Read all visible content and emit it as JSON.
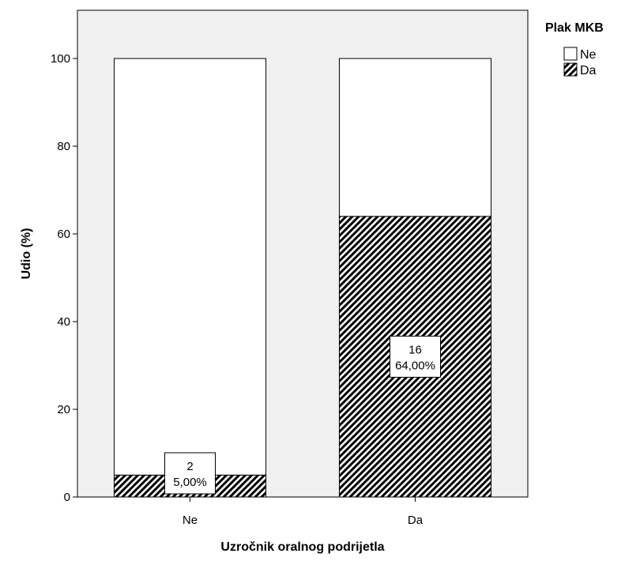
{
  "chart_data": {
    "type": "bar",
    "stacked": true,
    "percent_scale": true,
    "categories": [
      "Ne",
      "Da"
    ],
    "series": [
      {
        "name": "Da",
        "values": [
          5.0,
          64.0
        ],
        "pattern": "hatched",
        "counts": [
          "2",
          "16"
        ],
        "percent_labels": [
          "5,00%",
          "64,00%"
        ]
      },
      {
        "name": "Ne",
        "values": [
          95.0,
          36.0
        ],
        "pattern": "white"
      }
    ],
    "xlabel": "Uzročnik oralnog podrijetla",
    "ylabel": "Udio (%)",
    "ylim": [
      0,
      111
    ],
    "yticks": [
      0,
      20,
      40,
      60,
      80,
      100
    ],
    "ytick_labels": [
      "0",
      "20",
      "40",
      "60",
      "80",
      "100"
    ],
    "legend": {
      "title": "Plak MKB",
      "position": "top-right",
      "entries": [
        {
          "label": "Ne",
          "pattern": "white"
        },
        {
          "label": "Da",
          "pattern": "hatched"
        }
      ]
    },
    "grid": false,
    "plot_background": "#f0f0f0",
    "bar_outline": "#000000"
  }
}
